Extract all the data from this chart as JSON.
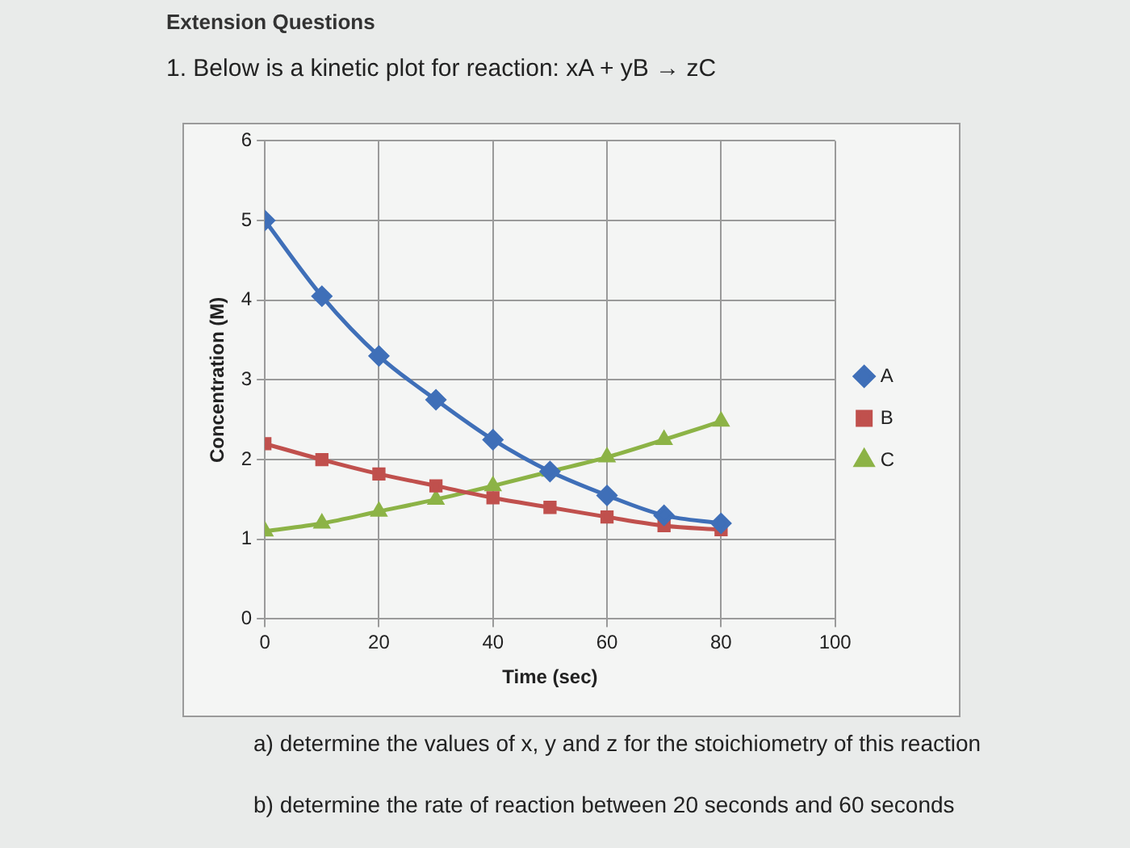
{
  "chart_data": {
    "type": "line",
    "title": "1. Below is a kinetic plot for reaction: xA + yB → zC",
    "xlabel": "Time (sec)",
    "ylabel": "Concentration (M)",
    "x": [
      0,
      10,
      20,
      30,
      40,
      50,
      60,
      70,
      80
    ],
    "series": [
      {
        "name": "A",
        "color": "#3f6fb8",
        "marker": "diamond",
        "values": [
          5.0,
          4.05,
          3.3,
          2.75,
          2.25,
          1.85,
          1.55,
          1.3,
          1.2
        ]
      },
      {
        "name": "B",
        "color": "#c0504d",
        "marker": "square",
        "values": [
          2.2,
          2.0,
          1.82,
          1.67,
          1.52,
          1.4,
          1.28,
          1.17,
          1.12
        ]
      },
      {
        "name": "C",
        "color": "#8cb346",
        "marker": "triangle",
        "values": [
          1.1,
          1.2,
          1.35,
          1.5,
          1.67,
          1.85,
          2.03,
          2.25,
          2.48
        ]
      }
    ],
    "xlim": [
      0,
      100
    ],
    "xticks": [
      0,
      20,
      40,
      60,
      80,
      100
    ],
    "ylim": [
      0,
      6
    ],
    "yticks": [
      0,
      1,
      2,
      3,
      4,
      5,
      6
    ],
    "grid": true,
    "legend": "right",
    "annotations": [
      "Extension Questions",
      "a) determine the values of x, y and z for the stoichiometry of this reaction",
      "b) determine the rate of reaction between 20 seconds and 60 seconds"
    ]
  }
}
